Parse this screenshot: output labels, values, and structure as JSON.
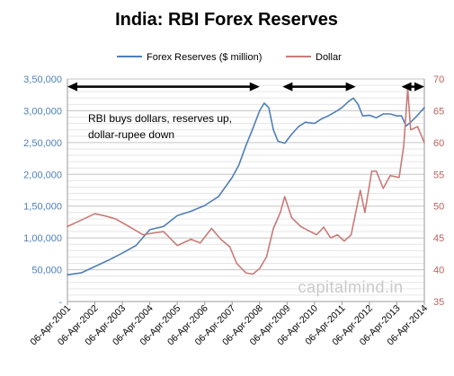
{
  "chart_data": {
    "type": "line",
    "title": "India: RBI Forex Reserves",
    "legend": [
      "Forex  Reserves ($ million)",
      "Dollar"
    ],
    "legend_position": "top",
    "grid": true,
    "y_left": {
      "range": [
        0,
        350000
      ],
      "ticks": [
        0,
        50000,
        100000,
        150000,
        200000,
        250000,
        300000,
        350000
      ],
      "tick_labels": [
        "-",
        "50,000",
        "1,00,000",
        "1,50,000",
        "2,00,000",
        "2,50,000",
        "3,00,000",
        "3,50,000"
      ]
    },
    "y_right": {
      "range": [
        35,
        70
      ],
      "ticks": [
        35,
        40,
        45,
        50,
        55,
        60,
        65,
        70
      ],
      "tick_labels": [
        "35",
        "40",
        "45",
        "50",
        "55",
        "60",
        "65",
        "70"
      ]
    },
    "x_axis": {
      "range": [
        "2001-04-06",
        "2014-04-06"
      ],
      "tick_labels": [
        "06-Apr-2001",
        "06-Apr-2002",
        "06-Apr-2003",
        "06-Apr-2004",
        "06-Apr-2005",
        "06-Apr-2006",
        "06-Apr-2007",
        "06-Apr-2008",
        "06-Apr-2009",
        "06-Apr-2010",
        "06-Apr-2011",
        "06-Apr-2012",
        "06-Apr-2013",
        "06-Apr-2014"
      ]
    },
    "series": [
      {
        "name": "Forex  Reserves ($ million)",
        "axis": "left",
        "color": "#4f7fb7",
        "x": [
          "2001-04-06",
          "2001-10-06",
          "2002-04-06",
          "2002-10-06",
          "2003-04-06",
          "2003-10-06",
          "2004-04-06",
          "2004-10-06",
          "2005-04-06",
          "2005-10-06",
          "2006-04-06",
          "2006-10-06",
          "2007-04-06",
          "2007-07-06",
          "2007-10-06",
          "2008-01-06",
          "2008-04-06",
          "2008-06-06",
          "2008-08-06",
          "2008-10-06",
          "2008-12-06",
          "2009-03-06",
          "2009-06-06",
          "2009-09-06",
          "2009-12-06",
          "2010-04-06",
          "2010-07-06",
          "2010-10-06",
          "2011-01-06",
          "2011-04-06",
          "2011-07-06",
          "2011-09-06",
          "2011-11-06",
          "2012-01-06",
          "2012-04-06",
          "2012-07-06",
          "2012-10-06",
          "2013-01-06",
          "2013-04-06",
          "2013-06-06",
          "2013-08-06",
          "2013-10-06",
          "2014-01-06",
          "2014-04-06"
        ],
        "y": [
          42000,
          45000,
          55000,
          65000,
          76000,
          88000,
          113000,
          118000,
          135000,
          142000,
          151000,
          165000,
          195000,
          215000,
          245000,
          272000,
          300000,
          312000,
          305000,
          270000,
          252000,
          249000,
          263000,
          275000,
          282000,
          280000,
          287000,
          292000,
          298000,
          305000,
          315000,
          320000,
          310000,
          292000,
          293000,
          289000,
          295000,
          295000,
          292000,
          292000,
          276000,
          282000,
          293000,
          305000
        ]
      },
      {
        "name": "Dollar",
        "axis": "right",
        "color": "#c87b78",
        "x": [
          "2001-04-06",
          "2001-10-06",
          "2002-04-06",
          "2002-08-06",
          "2003-01-06",
          "2003-06-06",
          "2004-01-06",
          "2004-06-06",
          "2004-10-06",
          "2005-04-06",
          "2005-10-06",
          "2006-02-06",
          "2006-07-06",
          "2006-11-06",
          "2007-03-06",
          "2007-06-06",
          "2007-10-06",
          "2008-01-06",
          "2008-04-06",
          "2008-07-06",
          "2008-10-06",
          "2009-01-06",
          "2009-03-06",
          "2009-06-06",
          "2009-10-06",
          "2010-01-06",
          "2010-05-06",
          "2010-08-06",
          "2010-11-06",
          "2011-02-06",
          "2011-05-06",
          "2011-08-06",
          "2011-10-06",
          "2011-12-06",
          "2012-02-06",
          "2012-05-06",
          "2012-07-06",
          "2012-10-06",
          "2013-01-06",
          "2013-05-06",
          "2013-07-06",
          "2013-08-28",
          "2013-10-06",
          "2014-01-06",
          "2014-04-06"
        ],
        "y": [
          46.8,
          47.8,
          48.8,
          48.5,
          48.0,
          47.0,
          45.5,
          45.8,
          46.0,
          43.8,
          44.8,
          44.2,
          46.5,
          44.8,
          43.6,
          41.0,
          39.5,
          39.3,
          40.2,
          42.0,
          46.5,
          49.0,
          51.5,
          48.2,
          46.8,
          46.2,
          45.5,
          46.7,
          45.0,
          45.5,
          44.5,
          45.5,
          49.0,
          52.5,
          49.0,
          55.5,
          55.5,
          52.8,
          54.8,
          54.5,
          59.5,
          68.5,
          62.0,
          62.5,
          60.0
        ]
      }
    ],
    "annotations": [
      {
        "text": "RBI buys dollars, reserves up, dollar-rupee down",
        "lines": [
          "RBI buys dollars, reserves up,",
          "dollar-rupee down"
        ]
      }
    ],
    "annotation_arrows": [
      {
        "from": "2001-04-06",
        "to": "2008-04-06",
        "level": 335000
      },
      {
        "from": "2009-02-06",
        "to": "2011-10-06",
        "level": 335000
      },
      {
        "from": "2013-06-06",
        "to": "2014-04-06",
        "level": 335000
      }
    ],
    "watermark": "capitalmind.in"
  }
}
